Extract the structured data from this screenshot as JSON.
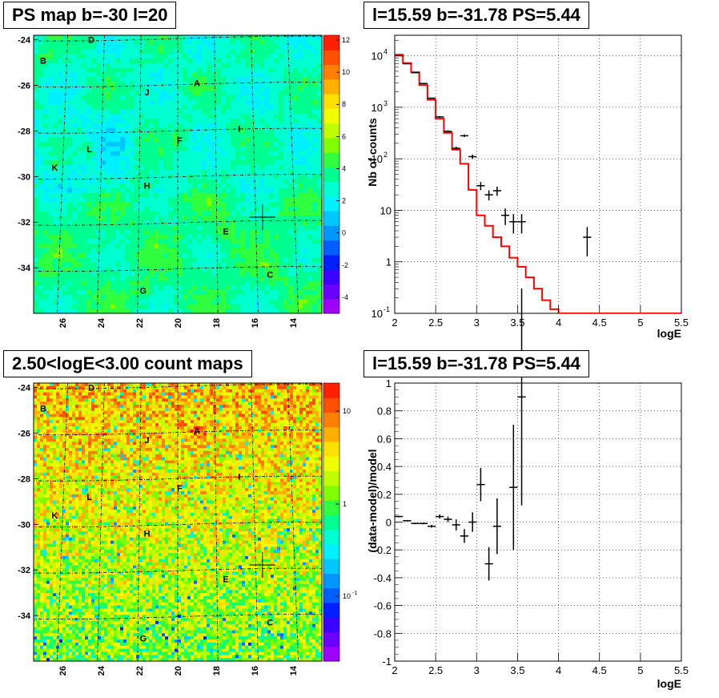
{
  "panels": [
    {
      "title": "PS map b=-30 l=20",
      "type": "map",
      "colorbar_ticks": [
        "12",
        "10",
        "8",
        "6",
        "4",
        "2",
        "0",
        "-2",
        "-4"
      ],
      "y_ticks": [
        "-24",
        "-26",
        "-28",
        "-30",
        "-32",
        "-34"
      ],
      "x_ticks": [
        "26",
        "24",
        "22",
        "20",
        "18",
        "16",
        "14"
      ],
      "sources": [
        "A",
        "B",
        "C",
        "D",
        "E",
        "F",
        "G",
        "H",
        "I",
        "J",
        "K",
        "L"
      ]
    },
    {
      "title": "l=15.59 b=-31.78 PS=5.44",
      "type": "spectrum",
      "ylabel": "Nb of counts",
      "xlabel": "logE",
      "x_ticks": [
        "2",
        "2.5",
        "3",
        "3.5",
        "4",
        "4.5",
        "5",
        "5.5"
      ]
    },
    {
      "title": "2.50<logE<3.00 count maps",
      "type": "map",
      "colorbar_ticks": [
        "10",
        "1",
        "10"
      ],
      "colorbar_exp": [
        "",
        "",
        "-1"
      ],
      "y_ticks": [
        "-24",
        "-26",
        "-28",
        "-30",
        "-32",
        "-34"
      ],
      "x_ticks": [
        "26",
        "24",
        "22",
        "20",
        "18",
        "16",
        "14"
      ],
      "sources": [
        "A",
        "B",
        "C",
        "D",
        "E",
        "F",
        "G",
        "H",
        "I",
        "J",
        "K",
        "L"
      ]
    },
    {
      "title": "l=15.59 b=-31.78 PS=5.44",
      "type": "residual",
      "ylabel": "(data-model)/model",
      "xlabel": "logE",
      "x_ticks": [
        "2",
        "2.5",
        "3",
        "3.5",
        "4",
        "4.5",
        "5",
        "5.5"
      ],
      "y_ticks": [
        "1",
        "0.8",
        "0.6",
        "0.4",
        "0.2",
        "0",
        "-0.2",
        "-0.4",
        "-0.6",
        "-0.8",
        "-1"
      ]
    }
  ],
  "chart_data": [
    {
      "type": "heatmap",
      "title": "PS map b=-30 l=20",
      "xlabel": "",
      "ylabel": "",
      "xlim": [
        27.5,
        12.5
      ],
      "ylim": [
        -36,
        -23.8
      ],
      "zlim": [
        -5,
        12
      ],
      "sources": [
        {
          "name": "A",
          "l": 19.0,
          "b": -25.9
        },
        {
          "name": "B",
          "l": 27.0,
          "b": -24.9
        },
        {
          "name": "C",
          "l": 15.2,
          "b": -34.3
        },
        {
          "name": "D",
          "l": 24.5,
          "b": -24.0
        },
        {
          "name": "E",
          "l": 17.5,
          "b": -32.4
        },
        {
          "name": "F",
          "l": 19.9,
          "b": -28.4
        },
        {
          "name": "G",
          "l": 21.8,
          "b": -35.0
        },
        {
          "name": "H",
          "l": 21.6,
          "b": -30.4
        },
        {
          "name": "I",
          "l": 16.8,
          "b": -27.9
        },
        {
          "name": "J",
          "l": 21.6,
          "b": -26.3
        },
        {
          "name": "K",
          "l": 26.4,
          "b": -29.6
        },
        {
          "name": "L",
          "l": 24.6,
          "b": -28.8
        }
      ],
      "marker": {
        "l": 15.59,
        "b": -31.78
      }
    },
    {
      "type": "line",
      "title": "l=15.59 b=-31.78 PS=5.44",
      "xlabel": "logE",
      "ylabel": "Nb of counts",
      "xlim": [
        2,
        5.5
      ],
      "ylim": [
        0.1,
        25000
      ],
      "yscale": "log",
      "series": [
        {
          "values_model": [
            [
              2.0,
              10500
            ],
            [
              2.1,
              7200
            ],
            [
              2.2,
              4800
            ],
            [
              2.3,
              2700
            ],
            [
              2.4,
              1400
            ],
            [
              2.5,
              600
            ],
            [
              2.6,
              320
            ],
            [
              2.7,
              150
            ],
            [
              2.8,
              80
            ],
            [
              2.9,
              25
            ],
            [
              3.0,
              8
            ],
            [
              3.1,
              5
            ],
            [
              3.2,
              3
            ],
            [
              3.3,
              2
            ],
            [
              3.4,
              1.2
            ],
            [
              3.5,
              0.8
            ],
            [
              3.6,
              0.5
            ],
            [
              3.7,
              0.3
            ],
            [
              3.8,
              0.18
            ],
            [
              3.9,
              0.12
            ],
            [
              4.0,
              0.1
            ],
            [
              5.5,
              0.1
            ]
          ],
          "values_data": [
            [
              2.05,
              10000
            ],
            [
              2.15,
              7000
            ],
            [
              2.25,
              4700
            ],
            [
              2.35,
              2900
            ],
            [
              2.45,
              1500
            ],
            [
              2.55,
              650
            ],
            [
              2.65,
              340
            ],
            [
              2.75,
              160
            ],
            [
              2.85,
              280
            ],
            [
              2.95,
              110
            ],
            [
              3.05,
              30
            ],
            [
              3.15,
              20
            ],
            [
              3.25,
              24
            ],
            [
              3.35,
              8
            ],
            [
              3.45,
              6
            ],
            [
              3.55,
              6
            ],
            [
              4.35,
              3
            ]
          ]
        }
      ]
    },
    {
      "type": "heatmap",
      "title": "2.50<logE<3.00 count maps",
      "xlabel": "",
      "ylabel": "",
      "xlim": [
        27.5,
        12.5
      ],
      "ylim": [
        -36,
        -23.8
      ],
      "zscale": "log"
    },
    {
      "type": "scatter",
      "title": "l=15.59 b=-31.78 PS=5.44",
      "xlabel": "logE",
      "ylabel": "(data-model)/model",
      "xlim": [
        2,
        5.5
      ],
      "ylim": [
        -1,
        1
      ],
      "points": [
        {
          "x": 2.05,
          "y": 0.04,
          "err": 0.005
        },
        {
          "x": 2.15,
          "y": 0.01,
          "err": 0.005
        },
        {
          "x": 2.25,
          "y": -0.01,
          "err": 0.005
        },
        {
          "x": 2.35,
          "y": -0.01,
          "err": 0.006
        },
        {
          "x": 2.45,
          "y": -0.03,
          "err": 0.01
        },
        {
          "x": 2.55,
          "y": 0.04,
          "err": 0.015
        },
        {
          "x": 2.65,
          "y": 0.02,
          "err": 0.02
        },
        {
          "x": 2.75,
          "y": -0.02,
          "err": 0.04
        },
        {
          "x": 2.85,
          "y": -0.1,
          "err": 0.05
        },
        {
          "x": 2.95,
          "y": 0.0,
          "err": 0.07
        },
        {
          "x": 3.05,
          "y": 0.27,
          "err": 0.12
        },
        {
          "x": 3.15,
          "y": -0.3,
          "err": 0.12
        },
        {
          "x": 3.25,
          "y": -0.03,
          "err": 0.2
        },
        {
          "x": 3.45,
          "y": 0.25,
          "err": 0.45
        },
        {
          "x": 3.55,
          "y": 0.9,
          "err": 0.78
        }
      ]
    }
  ]
}
